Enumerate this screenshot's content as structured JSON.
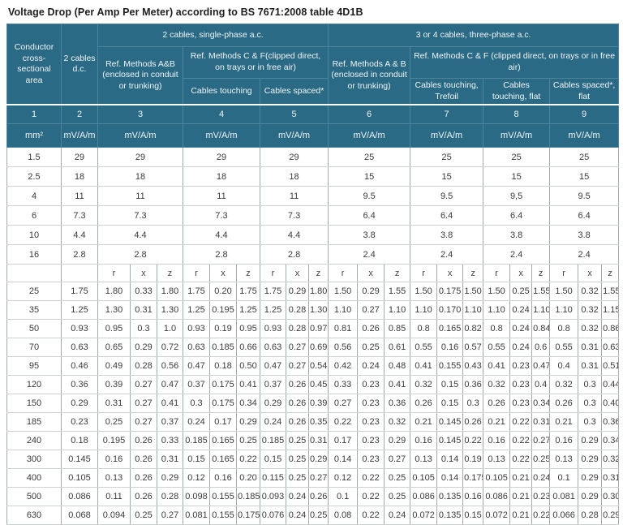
{
  "title": "Voltage Drop (Per Amp Per Meter) according to BS 7671:2008 table 4D1B",
  "colors": {
    "header_bg": "#2b6a84",
    "header_text": "#eef4f7",
    "body_text": "#3a3a3a",
    "grid_vertical": "#a2abae",
    "grid_horizontal": "#ccd1d2"
  },
  "table": {
    "groups": {
      "single_phase": "2 cables, single-phase a.c.",
      "three_phase": "3 or 4 cables, three-phase a.c."
    },
    "headers": {
      "conductor": "Conductor cross-sectional area",
      "dc": "2 cables d.c.",
      "method_ab_single": "Ref. Methods A&B (enclosed in conduit or trunking)",
      "method_cf_single": "Ref. Methods C & F(clipped direct, on trays or in free air)",
      "touching_single": "Cables touching",
      "spaced_single": "Cables spaced*",
      "method_ab_three": "Ref. Methods A & B (enclosed in conduit or trunking)",
      "method_cf_three": "Ref. Methods C & F (clipped direct, on trays or in free air)",
      "touching_trefoil": "Cables touching, Trefoil",
      "touching_flat": "Cables touching, flat",
      "spaced_flat": "Cables spaced*, flat"
    },
    "column_numbers": [
      "1",
      "2",
      "3",
      "4",
      "5",
      "6",
      "7",
      "8",
      "9"
    ],
    "units": [
      "mm²",
      "mV/A/m",
      "mV/A/m",
      "mV/A/m",
      "mV/A/m",
      "mV/A/m",
      "mV/A/m",
      "mV/A/m",
      "mV/A/m"
    ],
    "rxz_labels": [
      "r",
      "x",
      "z"
    ],
    "simple_rows": [
      {
        "area": "1.5",
        "values": [
          "29",
          "29",
          "29",
          "29",
          "25",
          "25",
          "25",
          "25"
        ]
      },
      {
        "area": "2.5",
        "values": [
          "18",
          "18",
          "18",
          "18",
          "15",
          "15",
          "15",
          "15"
        ]
      },
      {
        "area": "4",
        "values": [
          "11",
          "11",
          "11",
          "11",
          "9.5",
          "9.5",
          "9,5",
          "9.5"
        ]
      },
      {
        "area": "6",
        "values": [
          "7.3",
          "7.3",
          "7.3",
          "7.3",
          "6.4",
          "6.4",
          "6.4",
          "6.4"
        ]
      },
      {
        "area": "10",
        "values": [
          "4.4",
          "4.4",
          "4.4",
          "4.4",
          "3.8",
          "3.8",
          "3.8",
          "3.8"
        ]
      },
      {
        "area": "16",
        "values": [
          "2.8",
          "2.8",
          "2.8",
          "2.8",
          "2.4",
          "2.4",
          "2.4",
          "2.4"
        ]
      }
    ],
    "complex_rows": [
      {
        "area": "25",
        "dc": "1.75",
        "rxz": [
          [
            "1.80",
            "0.33",
            "1.80"
          ],
          [
            "1.75",
            "0.20",
            "1.75"
          ],
          [
            "1.75",
            "0.29",
            "1.80"
          ],
          [
            "1.50",
            "0.29",
            "1.55"
          ],
          [
            "1.50",
            "0.175",
            "1.50"
          ],
          [
            "1.50",
            "0.25",
            "1.55"
          ],
          [
            "1.50",
            "0.32",
            "1.55"
          ]
        ]
      },
      {
        "area": "35",
        "dc": "1.25",
        "rxz": [
          [
            "1.30",
            "0.31",
            "1.30"
          ],
          [
            "1.25",
            "0.195",
            "1.25"
          ],
          [
            "1.25",
            "0.28",
            "1.30"
          ],
          [
            "1.10",
            "0.27",
            "1.10"
          ],
          [
            "1.10",
            "0.170",
            "1.10"
          ],
          [
            "1.10",
            "0.24",
            "1.10"
          ],
          [
            "1.10",
            "0.32",
            "1.15"
          ]
        ]
      },
      {
        "area": "50",
        "dc": "0.93",
        "rxz": [
          [
            "0.95",
            "0.3",
            "1.0"
          ],
          [
            "0.93",
            "0.19",
            "0.95"
          ],
          [
            "0.93",
            "0.28",
            "0.97"
          ],
          [
            "0.81",
            "0.26",
            "0.85"
          ],
          [
            "0.8",
            "0.165",
            "0.82"
          ],
          [
            "0.8",
            "0.24",
            "0.84"
          ],
          [
            "0.8",
            "0.32",
            "0.86"
          ]
        ]
      },
      {
        "area": "70",
        "dc": "0.63",
        "rxz": [
          [
            "0.65",
            "0.29",
            "0.72"
          ],
          [
            "0.63",
            "0.185",
            "0.66"
          ],
          [
            "0.63",
            "0.27",
            "0.69"
          ],
          [
            "0.56",
            "0.25",
            "0.61"
          ],
          [
            "0.55",
            "0.16",
            "0.57"
          ],
          [
            "0.55",
            "0.24",
            "0.6"
          ],
          [
            "0.55",
            "0.31",
            "0.63"
          ]
        ]
      },
      {
        "area": "95",
        "dc": "0.46",
        "rxz": [
          [
            "0.49",
            "0.28",
            "0.56"
          ],
          [
            "0.47",
            "0.18",
            "0.50"
          ],
          [
            "0.47",
            "0.27",
            "0.54"
          ],
          [
            "0.42",
            "0.24",
            "0.48"
          ],
          [
            "0.41",
            "0.155",
            "0.43"
          ],
          [
            "0.41",
            "0.23",
            "0.47"
          ],
          [
            "0.4",
            "0.31",
            "0.51"
          ]
        ]
      },
      {
        "area": "120",
        "dc": "0.36",
        "rxz": [
          [
            "0.39",
            "0.27",
            "0.47"
          ],
          [
            "0.37",
            "0.175",
            "0.41"
          ],
          [
            "0.37",
            "0.26",
            "0.45"
          ],
          [
            "0.33",
            "0.23",
            "0.41"
          ],
          [
            "0.32",
            "0.15",
            "0.36"
          ],
          [
            "0.32",
            "0.23",
            "0.4"
          ],
          [
            "0.32",
            "0.3",
            "0.44"
          ]
        ]
      },
      {
        "area": "150",
        "dc": "0.29",
        "rxz": [
          [
            "0.31",
            "0.27",
            "0.41"
          ],
          [
            "0.3",
            "0.175",
            "0.34"
          ],
          [
            "0.29",
            "0.26",
            "0.39"
          ],
          [
            "0.27",
            "0.23",
            "0.36"
          ],
          [
            "0.26",
            "0.15",
            "0.3"
          ],
          [
            "0.26",
            "0.23",
            "0.34"
          ],
          [
            "0.26",
            "0.3",
            "0.40"
          ]
        ]
      },
      {
        "area": "185",
        "dc": "0.23",
        "rxz": [
          [
            "0.25",
            "0.27",
            "0.37"
          ],
          [
            "0.24",
            "0.17",
            "0.29"
          ],
          [
            "0.24",
            "0.26",
            "0.35"
          ],
          [
            "0.22",
            "0.23",
            "0.32"
          ],
          [
            "0.21",
            "0.145",
            "0.26"
          ],
          [
            "0.21",
            "0.22",
            "0.31"
          ],
          [
            "0.21",
            "0.3",
            "0.36"
          ]
        ]
      },
      {
        "area": "240",
        "dc": "0.18",
        "rxz": [
          [
            "0.195",
            "0.26",
            "0.33"
          ],
          [
            "0.185",
            "0.165",
            "0.25"
          ],
          [
            "0.185",
            "0.25",
            "0.31"
          ],
          [
            "0.17",
            "0.23",
            "0.29"
          ],
          [
            "0.16",
            "0.145",
            "0.22"
          ],
          [
            "0.16",
            "0.22",
            "0.27"
          ],
          [
            "0.16",
            "0.29",
            "0.34"
          ]
        ]
      },
      {
        "area": "300",
        "dc": "0.145",
        "rxz": [
          [
            "0.16",
            "0.26",
            "0.31"
          ],
          [
            "0.15",
            "0.165",
            "0.22"
          ],
          [
            "0.15",
            "0.25",
            "0.29"
          ],
          [
            "0.14",
            "0.23",
            "0.27"
          ],
          [
            "0.13",
            "0.14",
            "0.19"
          ],
          [
            "0.13",
            "0.22",
            "0.25"
          ],
          [
            "0.13",
            "0.29",
            "0.32"
          ]
        ]
      },
      {
        "area": "400",
        "dc": "0.105",
        "rxz": [
          [
            "0.13",
            "0.26",
            "0.29"
          ],
          [
            "0.12",
            "0.16",
            "0.20"
          ],
          [
            "0.115",
            "0.25",
            "0.27"
          ],
          [
            "0.12",
            "0.22",
            "0.25"
          ],
          [
            "0.105",
            "0.14",
            "0.175"
          ],
          [
            "0.105",
            "0.21",
            "0.24"
          ],
          [
            "0.1",
            "0.29",
            "0.31"
          ]
        ]
      },
      {
        "area": "500",
        "dc": "0.086",
        "rxz": [
          [
            "0.11",
            "0.26",
            "0.28"
          ],
          [
            "0.098",
            "0.155",
            "0.185"
          ],
          [
            "0.093",
            "0.24",
            "0.26"
          ],
          [
            "0.1",
            "0.22",
            "0.25"
          ],
          [
            "0.086",
            "0.135",
            "0.16"
          ],
          [
            "0.086",
            "0.21",
            "0.23"
          ],
          [
            "0.081",
            "0.29",
            "0.30"
          ]
        ]
      },
      {
        "area": "630",
        "dc": "0.068",
        "rxz": [
          [
            "0.094",
            "0.25",
            "0.27"
          ],
          [
            "0.081",
            "0.155",
            "0.175"
          ],
          [
            "0.076",
            "0.24",
            "0.25"
          ],
          [
            "0.08",
            "0.22",
            "0.24"
          ],
          [
            "0.072",
            "0.135",
            "0.15"
          ],
          [
            "0.072",
            "0.21",
            "0.22"
          ],
          [
            "0.066",
            "0.28",
            "0.29"
          ]
        ]
      }
    ]
  }
}
